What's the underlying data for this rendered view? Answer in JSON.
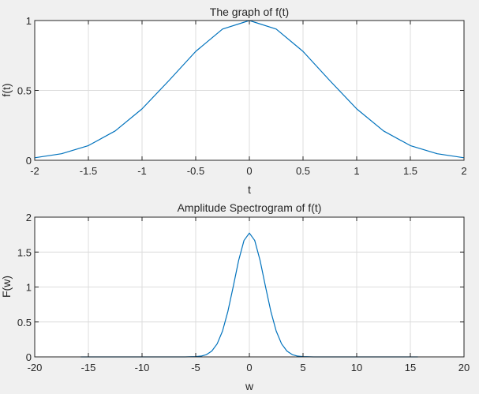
{
  "figure": {
    "background": "#f0f0f0",
    "axes_background": "#ffffff",
    "grid_color": "#dcdcdc",
    "axis_color": "#262626",
    "line_color": "#0072bd"
  },
  "chart_data": [
    {
      "type": "line",
      "title": "The graph of f(t)",
      "xlabel": "t",
      "ylabel": "f(t)",
      "xlim": [
        -2,
        2
      ],
      "ylim": [
        0,
        1
      ],
      "xticks": [
        -2,
        -1.5,
        -1,
        -0.5,
        0,
        0.5,
        1,
        1.5,
        2
      ],
      "xtick_labels": [
        "-2",
        "-1.5",
        "-1",
        "-0.5",
        "0",
        "0.5",
        "1",
        "1.5",
        "2"
      ],
      "yticks": [
        0,
        0.5,
        1
      ],
      "ytick_labels": [
        "0",
        "0.5",
        "1"
      ],
      "grid": true,
      "series": [
        {
          "x": [
            -2,
            -1.75,
            -1.5,
            -1.25,
            -1,
            -0.75,
            -0.5,
            -0.25,
            0,
            0.25,
            0.5,
            0.75,
            1,
            1.25,
            1.5,
            1.75,
            2
          ],
          "y": [
            0.018,
            0.047,
            0.105,
            0.21,
            0.368,
            0.57,
            0.779,
            0.939,
            1,
            0.939,
            0.779,
            0.57,
            0.368,
            0.21,
            0.105,
            0.047,
            0.018
          ]
        }
      ]
    },
    {
      "type": "line",
      "title": "Amplitude Spectrogram of f(t)",
      "xlabel": "w",
      "ylabel": "F(w)",
      "xlim": [
        -20,
        20
      ],
      "ylim": [
        0,
        2
      ],
      "xticks": [
        -20,
        -15,
        -10,
        -5,
        0,
        5,
        10,
        15,
        20
      ],
      "xtick_labels": [
        "-20",
        "-15",
        "-10",
        "-5",
        "0",
        "5",
        "10",
        "15",
        "20"
      ],
      "yticks": [
        0,
        0.5,
        1,
        1.5,
        2
      ],
      "ytick_labels": [
        "0",
        "0.5",
        "1",
        "1.5",
        "2"
      ],
      "grid": true,
      "series": [
        {
          "x": [
            -15.7,
            -8,
            -6,
            -5,
            -4.5,
            -4,
            -3.5,
            -3,
            -2.5,
            -2,
            -1.5,
            -1,
            -0.5,
            0,
            0.5,
            1,
            1.5,
            2,
            2.5,
            3,
            3.5,
            4,
            4.5,
            5,
            6,
            8,
            15.7
          ],
          "y": [
            0,
            0,
            0,
            0.004,
            0.011,
            0.032,
            0.083,
            0.187,
            0.37,
            0.652,
            1.008,
            1.38,
            1.666,
            1.772,
            1.666,
            1.38,
            1.008,
            0.652,
            0.37,
            0.187,
            0.083,
            0.032,
            0.011,
            0.004,
            0,
            0,
            0
          ]
        }
      ]
    }
  ]
}
